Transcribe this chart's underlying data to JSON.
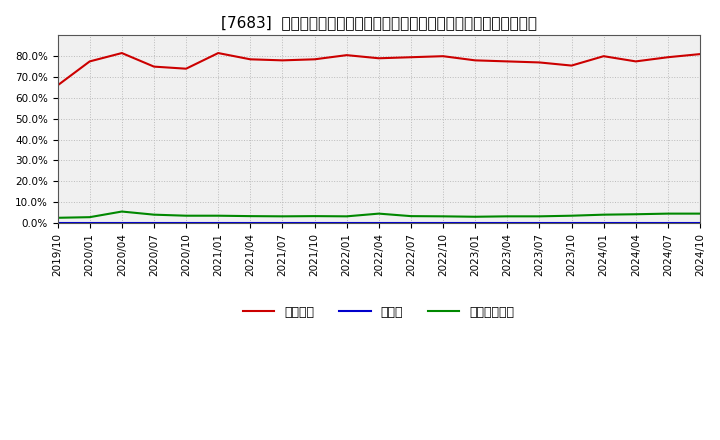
{
  "title": "[7683]  自己資本、のれん、繰延税金資産の総資産に対する比率の推移",
  "dates": [
    "2019-10",
    "2020-01",
    "2020-04",
    "2020-07",
    "2020-10",
    "2021-01",
    "2021-04",
    "2021-07",
    "2021-10",
    "2022-01",
    "2022-04",
    "2022-07",
    "2022-10",
    "2023-01",
    "2023-04",
    "2023-07",
    "2023-10",
    "2024-01",
    "2024-04",
    "2024-07",
    "2024-10"
  ],
  "jikoshihon": [
    66.0,
    77.5,
    81.5,
    75.0,
    74.0,
    81.5,
    78.5,
    78.0,
    78.5,
    80.5,
    79.0,
    79.5,
    80.0,
    78.0,
    77.5,
    77.0,
    75.5,
    80.0,
    77.5,
    79.5,
    81.0
  ],
  "noren": [
    0.0,
    0.0,
    0.0,
    0.0,
    0.0,
    0.0,
    0.0,
    0.0,
    0.0,
    0.0,
    0.0,
    0.0,
    0.0,
    0.0,
    0.0,
    0.0,
    0.0,
    0.0,
    0.0,
    0.0,
    0.0
  ],
  "kuenshi": [
    2.5,
    2.8,
    5.5,
    4.0,
    3.5,
    3.5,
    3.3,
    3.2,
    3.3,
    3.2,
    4.5,
    3.3,
    3.2,
    3.0,
    3.2,
    3.2,
    3.5,
    4.0,
    4.2,
    4.5,
    4.5
  ],
  "jikoshihon_color": "#cc0000",
  "noren_color": "#0000cc",
  "kuenshi_color": "#008800",
  "background_color": "#ffffff",
  "plot_bg_color": "#f0f0f0",
  "grid_color": "#bbbbbb",
  "ylim": [
    0,
    90
  ],
  "yticks": [
    0,
    10,
    20,
    30,
    40,
    50,
    60,
    70,
    80
  ],
  "legend_labels": [
    "自己資本",
    "のれん",
    "繰延税金資産"
  ],
  "xlabel_dates": [
    "2019/10",
    "2020/01",
    "2020/04",
    "2020/07",
    "2020/10",
    "2021/01",
    "2021/04",
    "2021/07",
    "2021/10",
    "2022/01",
    "2022/04",
    "2022/07",
    "2022/10",
    "2023/01",
    "2023/04",
    "2023/07",
    "2023/10",
    "2024/01",
    "2024/04",
    "2024/07",
    "2024/10"
  ]
}
